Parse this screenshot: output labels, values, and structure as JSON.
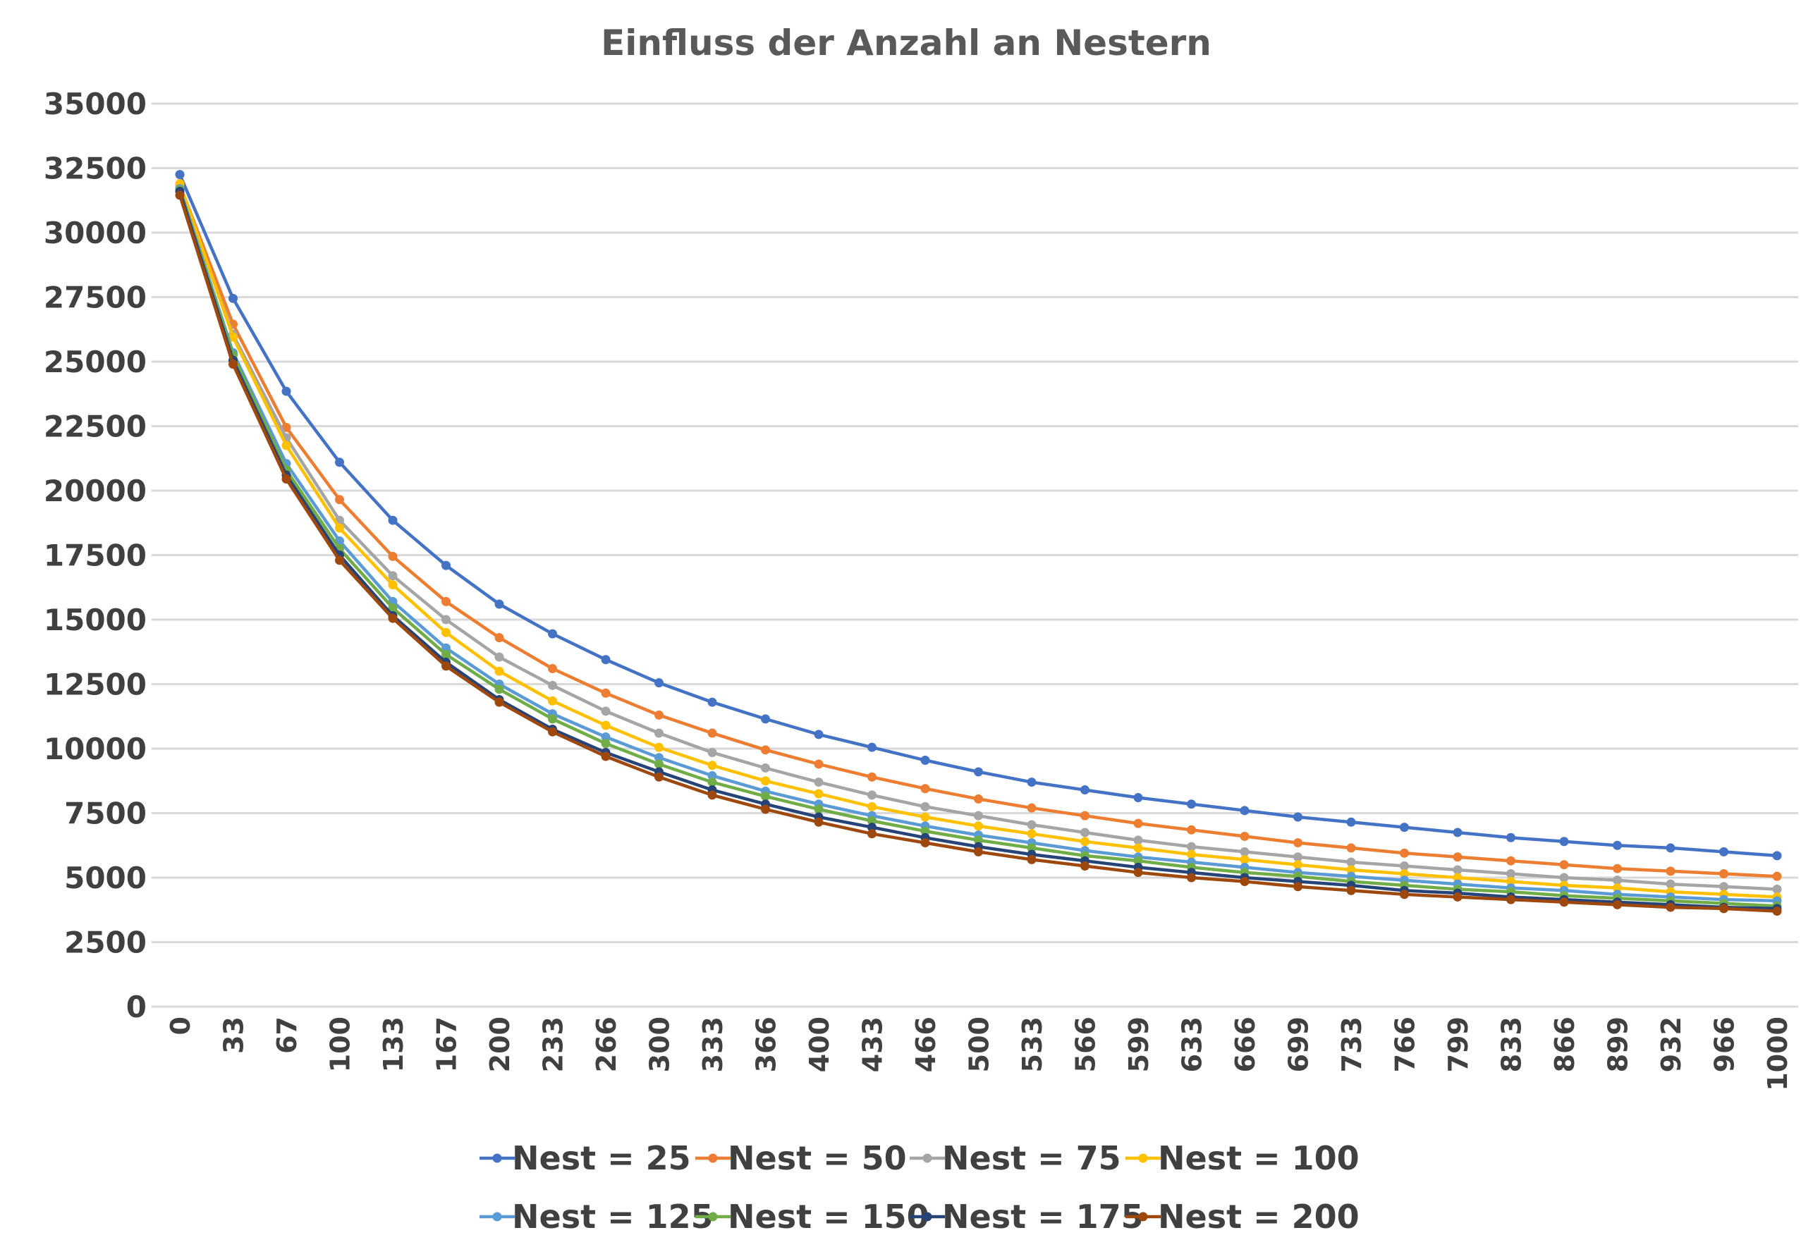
{
  "chart_data": {
    "type": "line",
    "title": "Einfluss der Anzahl an Nestern",
    "xlabel": "",
    "ylabel": "",
    "ylim": [
      0,
      35000
    ],
    "yticks": [
      "0",
      "2500",
      "5000",
      "7500",
      "10000",
      "12500",
      "15000",
      "17500",
      "20000",
      "22500",
      "25000",
      "27500",
      "30000",
      "32500",
      "35000"
    ],
    "categories": [
      "0",
      "33",
      "67",
      "100",
      "133",
      "167",
      "200",
      "233",
      "266",
      "300",
      "333",
      "366",
      "400",
      "433",
      "466",
      "500",
      "533",
      "566",
      "599",
      "633",
      "666",
      "699",
      "733",
      "766",
      "799",
      "833",
      "866",
      "899",
      "932",
      "966",
      "1000"
    ],
    "grid": true,
    "legend_position": "bottom",
    "series": [
      {
        "name": "Nest = 25",
        "color": "#4472C4",
        "values": [
          32250,
          27450,
          23850,
          21100,
          18850,
          17100,
          15600,
          14450,
          13450,
          12550,
          11800,
          11150,
          10550,
          10050,
          9550,
          9100,
          8700,
          8400,
          8100,
          7850,
          7600,
          7350,
          7150,
          6950,
          6750,
          6550,
          6400,
          6250,
          6150,
          6000,
          5850
        ]
      },
      {
        "name": "Nest = 50",
        "color": "#ED7D31",
        "values": [
          31850,
          26450,
          22450,
          19650,
          17450,
          15700,
          14300,
          13100,
          12150,
          11300,
          10600,
          9950,
          9400,
          8900,
          8450,
          8050,
          7700,
          7400,
          7100,
          6850,
          6600,
          6350,
          6150,
          5950,
          5800,
          5650,
          5500,
          5350,
          5250,
          5150,
          5050
        ]
      },
      {
        "name": "Nest = 75",
        "color": "#A5A5A5",
        "values": [
          31750,
          26050,
          22050,
          18850,
          16700,
          15000,
          13550,
          12450,
          11450,
          10600,
          9850,
          9250,
          8700,
          8200,
          7750,
          7400,
          7050,
          6750,
          6450,
          6200,
          6000,
          5800,
          5600,
          5450,
          5300,
          5150,
          5000,
          4900,
          4750,
          4650,
          4550
        ]
      },
      {
        "name": "Nest = 100",
        "color": "#FFC000",
        "values": [
          31900,
          25950,
          21750,
          18550,
          16350,
          14500,
          13000,
          11850,
          10900,
          10050,
          9350,
          8750,
          8250,
          7750,
          7350,
          7000,
          6700,
          6400,
          6150,
          5900,
          5700,
          5500,
          5300,
          5150,
          5000,
          4850,
          4700,
          4600,
          4450,
          4350,
          4250
        ]
      },
      {
        "name": "Nest = 125",
        "color": "#5B9BD5",
        "values": [
          31700,
          25350,
          21050,
          18050,
          15700,
          13900,
          12500,
          11350,
          10450,
          9650,
          8950,
          8350,
          7850,
          7400,
          7000,
          6650,
          6350,
          6050,
          5800,
          5600,
          5400,
          5200,
          5050,
          4900,
          4750,
          4600,
          4500,
          4350,
          4250,
          4150,
          4100
        ]
      },
      {
        "name": "Nest = 150",
        "color": "#70AD47",
        "values": [
          31650,
          25250,
          20800,
          17750,
          15450,
          13650,
          12300,
          11150,
          10200,
          9400,
          8700,
          8150,
          7650,
          7200,
          6800,
          6450,
          6150,
          5850,
          5650,
          5400,
          5200,
          5050,
          4850,
          4700,
          4550,
          4450,
          4300,
          4200,
          4100,
          4000,
          3900
        ]
      },
      {
        "name": "Nest = 175",
        "color": "#264478",
        "values": [
          31600,
          25050,
          20600,
          17500,
          15150,
          13350,
          11900,
          10750,
          9850,
          9100,
          8400,
          7850,
          7350,
          6950,
          6550,
          6200,
          5900,
          5650,
          5400,
          5200,
          5000,
          4850,
          4700,
          4500,
          4400,
          4250,
          4150,
          4050,
          3950,
          3850,
          3800
        ]
      },
      {
        "name": "Nest = 200",
        "color": "#9E480E",
        "values": [
          31450,
          24900,
          20450,
          17300,
          15050,
          13200,
          11800,
          10650,
          9700,
          8900,
          8200,
          7650,
          7150,
          6700,
          6350,
          6000,
          5700,
          5450,
          5200,
          5000,
          4850,
          4650,
          4500,
          4350,
          4250,
          4150,
          4050,
          3950,
          3850,
          3800,
          3700
        ]
      }
    ]
  }
}
